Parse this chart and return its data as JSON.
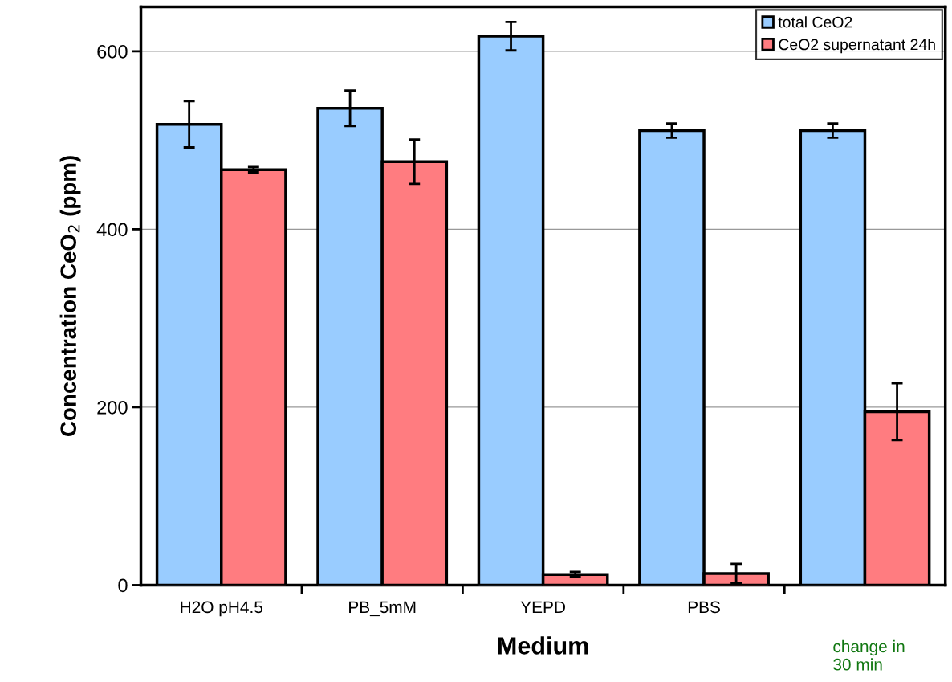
{
  "chart_data": {
    "type": "bar",
    "xlabel": "Medium",
    "ylabel": "Concentration CeO$_{2}$ (ppm)",
    "categories": [
      "H2O pH4.5",
      "PB_5mM",
      "YEPD",
      "PBS",
      null
    ],
    "series": [
      {
        "name": "total CeO2",
        "color": "#99ccff",
        "values": [
          518,
          536,
          617,
          511,
          511
        ],
        "errors": [
          26,
          20,
          16,
          8,
          8
        ]
      },
      {
        "name": "CeO2 supernatant 24h",
        "color": "#ff7c80",
        "values": [
          467,
          476,
          12,
          13,
          195
        ],
        "errors": [
          3,
          25,
          3,
          11,
          32
        ]
      }
    ],
    "ylim": [
      0,
      650
    ],
    "yticks": [
      0,
      200,
      400,
      600
    ],
    "grid": "y",
    "legend": "top right",
    "annotations": [
      "change in\n30 min"
    ]
  }
}
